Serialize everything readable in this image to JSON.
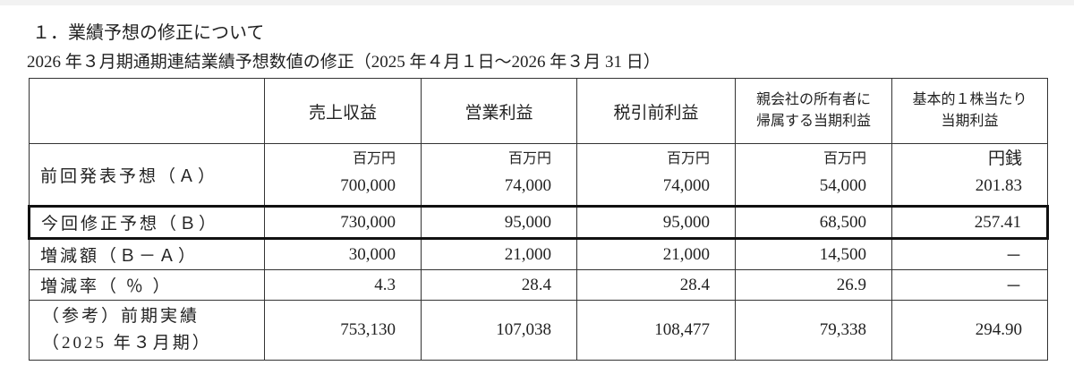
{
  "section_title": "１．業績予想の修正について",
  "subtitle": "2026 年３月期通期連結業績予想数値の修正（2025 年４月１日～2026 年３月 31 日）",
  "table": {
    "headers": [
      "売上収益",
      "営業利益",
      "税引前利益",
      [
        "親会社の所有者に",
        "帰属する当期利益"
      ],
      [
        "基本的１株当たり",
        "当期利益"
      ]
    ],
    "units": [
      "百万円",
      "百万円",
      "百万円",
      "百万円",
      "円銭"
    ],
    "rows": [
      {
        "label": "前回発表予想（Ａ）",
        "values": [
          "700,000",
          "74,000",
          "74,000",
          "54,000",
          "201.83"
        ]
      },
      {
        "label": "今回修正予想（Ｂ）",
        "values": [
          "730,000",
          "95,000",
          "95,000",
          "68,500",
          "257.41"
        ]
      },
      {
        "label": "増減額（Ｂ－Ａ）",
        "values": [
          "30,000",
          "21,000",
          "21,000",
          "14,500",
          "－"
        ]
      },
      {
        "label": "増減率（ ％ ）",
        "values": [
          "4.3",
          "28.4",
          "28.4",
          "26.9",
          "－"
        ]
      },
      {
        "label": [
          "（参考）前期実績",
          "（2025 年３月期）"
        ],
        "values": [
          "753,130",
          "107,038",
          "108,477",
          "79,338",
          "294.90"
        ]
      }
    ]
  }
}
